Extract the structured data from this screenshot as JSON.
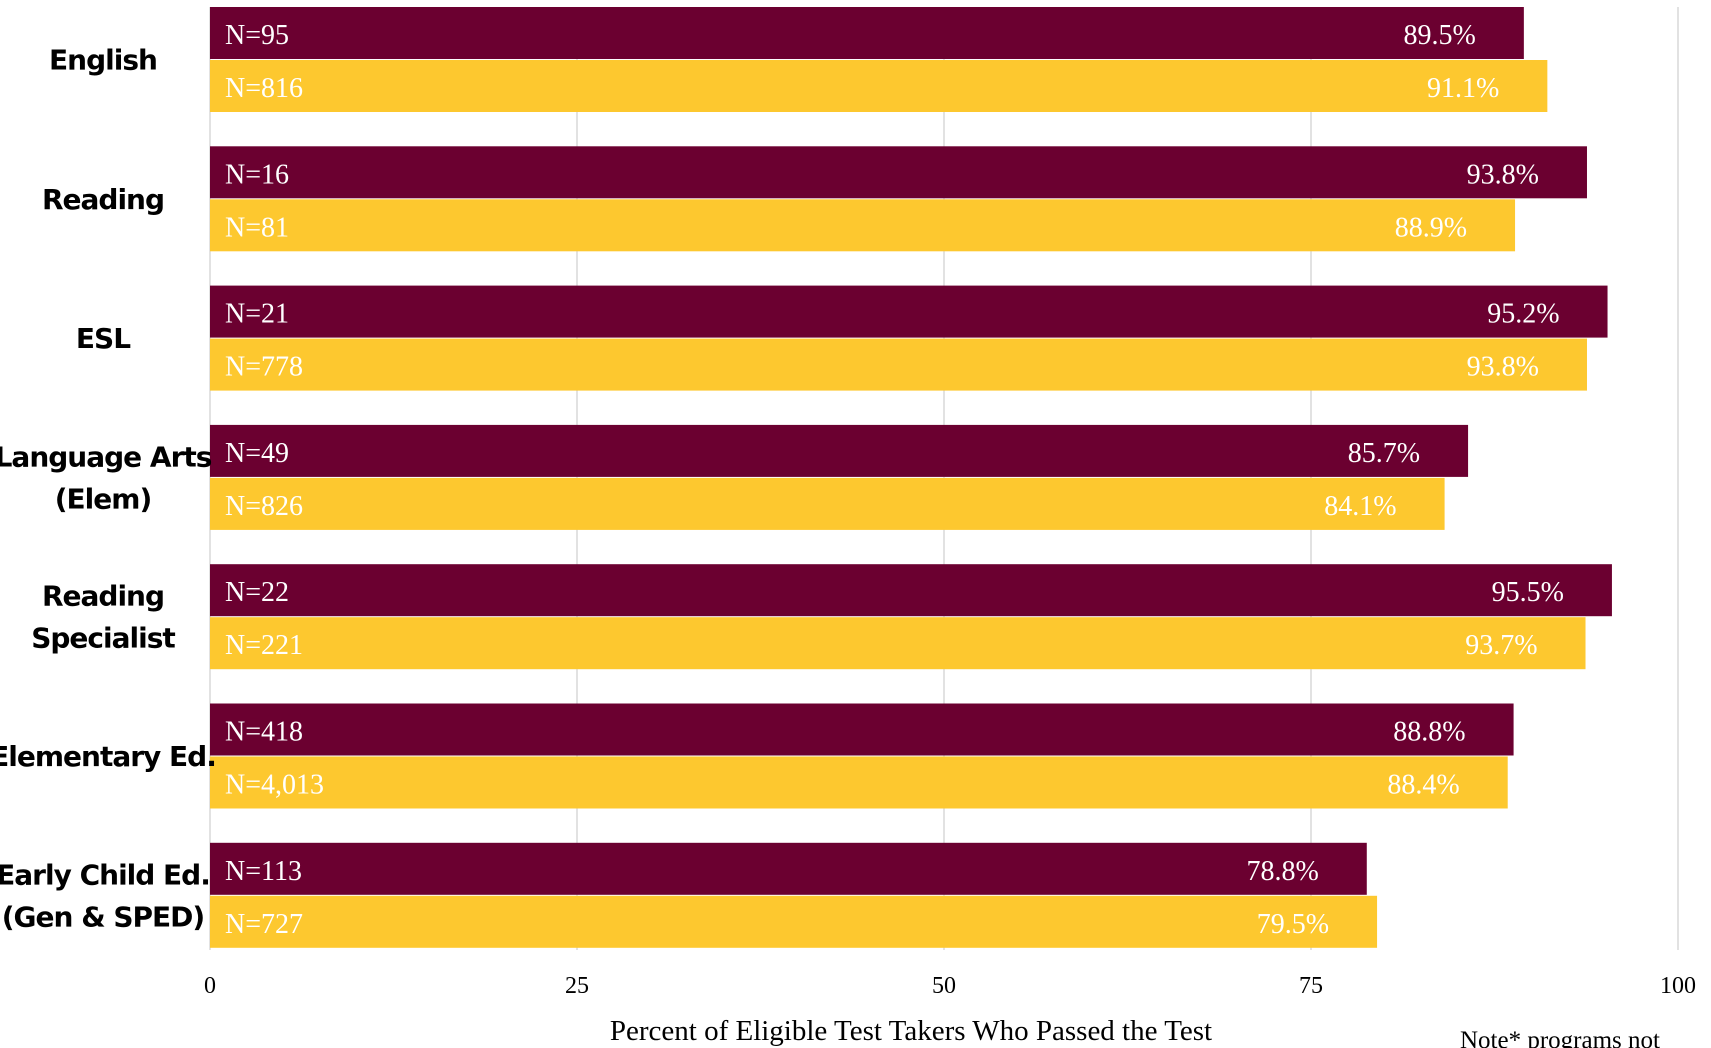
{
  "chart_data": {
    "type": "bar",
    "orientation": "horizontal",
    "categories": [
      "English",
      "Reading",
      "ESL",
      "Language Arts (Elem)",
      "Reading Specialist",
      "Elementary Ed.",
      "Early Child Ed. (Gen & SPED)"
    ],
    "category_lines": [
      [
        "English"
      ],
      [
        "Reading"
      ],
      [
        "ESL"
      ],
      [
        "Language Arts",
        "(Elem)"
      ],
      [
        "Reading",
        "Specialist"
      ],
      [
        "Elementary Ed."
      ],
      [
        "Early Child Ed.",
        "(Gen & SPED)"
      ]
    ],
    "series": [
      {
        "color": "#6b0030",
        "values": [
          89.5,
          93.8,
          95.2,
          85.7,
          95.5,
          88.8,
          78.8
        ],
        "value_labels": [
          "89.5%",
          "93.8%",
          "95.2%",
          "85.7%",
          "95.5%",
          "88.8%",
          "78.8%"
        ],
        "n_labels": [
          "N=95",
          "N=16",
          "N=21",
          "N=49",
          "N=22",
          "N=418",
          "N=113"
        ]
      },
      {
        "color": "#fdc82f",
        "values": [
          91.1,
          88.9,
          93.8,
          84.1,
          93.7,
          88.4,
          79.5
        ],
        "value_labels": [
          "91.1%",
          "88.9%",
          "93.8%",
          "84.1%",
          "93.7%",
          "88.4%",
          "79.5%"
        ],
        "n_labels": [
          "N=816",
          "N=81",
          "N=778",
          "N=826",
          "N=221",
          "N=4,013",
          "N=727"
        ]
      }
    ],
    "xlim": [
      0,
      100
    ],
    "xticks": [
      0,
      25,
      50,
      75,
      100
    ],
    "xtick_labels": [
      "0",
      "25",
      "50",
      "75",
      "100"
    ],
    "xlabel": "Percent of Eligible Test Takers Who Passed the Test",
    "grid": true,
    "note": "Note* programs not"
  }
}
